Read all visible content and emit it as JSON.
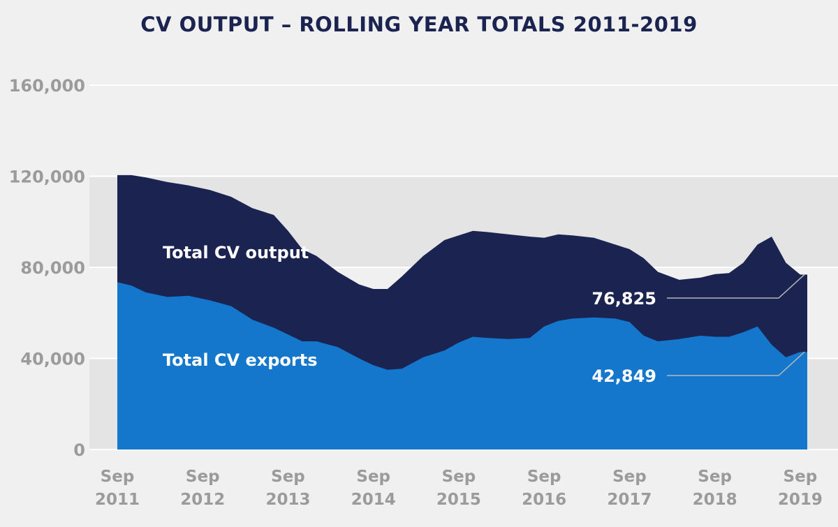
{
  "chart_data": {
    "type": "area",
    "title": "CV OUTPUT – ROLLING YEAR TOTALS 2011-2019",
    "ylim": [
      0,
      160000
    ],
    "yticks": [
      {
        "value": 0,
        "label": "0"
      },
      {
        "value": 40000,
        "label": "40,000"
      },
      {
        "value": 80000,
        "label": "80,000"
      },
      {
        "value": 120000,
        "label": "120,000"
      },
      {
        "value": 160000,
        "label": "160,000"
      }
    ],
    "xlim": [
      2011.667,
      2019.75
    ],
    "xticks": [
      {
        "value": 2011.667,
        "line1": "Sep",
        "line2": "2011"
      },
      {
        "value": 2012.667,
        "line1": "Sep",
        "line2": "2012"
      },
      {
        "value": 2013.667,
        "line1": "Sep",
        "line2": "2013"
      },
      {
        "value": 2014.667,
        "line1": "Sep",
        "line2": "2014"
      },
      {
        "value": 2015.667,
        "line1": "Sep",
        "line2": "2015"
      },
      {
        "value": 2016.667,
        "line1": "Sep",
        "line2": "2016"
      },
      {
        "value": 2017.667,
        "line1": "Sep",
        "line2": "2017"
      },
      {
        "value": 2018.667,
        "line1": "Sep",
        "line2": "2018"
      },
      {
        "value": 2019.667,
        "line1": "Sep",
        "line2": "2019"
      }
    ],
    "grid": true,
    "x": [
      2011.667,
      2011.833,
      2012.0,
      2012.25,
      2012.5,
      2012.75,
      2013.0,
      2013.25,
      2013.5,
      2013.667,
      2013.833,
      2014.0,
      2014.25,
      2014.5,
      2014.667,
      2014.833,
      2015.0,
      2015.25,
      2015.5,
      2015.667,
      2015.833,
      2016.0,
      2016.25,
      2016.5,
      2016.667,
      2016.833,
      2017.0,
      2017.25,
      2017.5,
      2017.667,
      2017.833,
      2018.0,
      2018.25,
      2018.5,
      2018.667,
      2018.833,
      2019.0,
      2019.167,
      2019.333,
      2019.5,
      2019.667,
      2019.75
    ],
    "series": [
      {
        "name": "Total CV output",
        "color": "#1b2450",
        "values": [
          120500,
          120500,
          119500,
          117500,
          116000,
          114000,
          111000,
          106000,
          103000,
          96000,
          88000,
          85000,
          78000,
          72500,
          70500,
          70500,
          76000,
          85000,
          92000,
          94000,
          96000,
          95500,
          94500,
          93500,
          93000,
          94500,
          94000,
          93000,
          90000,
          88000,
          84000,
          78000,
          74500,
          75500,
          77000,
          77500,
          82000,
          90000,
          93500,
          82000,
          76825,
          76825
        ]
      },
      {
        "name": "Total CV exports",
        "color": "#1477cc",
        "values": [
          73500,
          72000,
          69000,
          67000,
          67500,
          65500,
          63000,
          57000,
          53500,
          50500,
          47500,
          47500,
          45000,
          40000,
          37000,
          35000,
          35500,
          40500,
          43500,
          47000,
          49500,
          49000,
          48500,
          49000,
          54000,
          56500,
          57500,
          58000,
          57500,
          56000,
          50000,
          47500,
          48500,
          50000,
          49500,
          49500,
          51500,
          54000,
          46000,
          40500,
          42849,
          42849
        ]
      }
    ],
    "annotations": [
      {
        "text": "Total CV output",
        "series": 0
      },
      {
        "text": "Total CV exports",
        "series": 1
      },
      {
        "text": "76,825",
        "value": 76825,
        "series": 0
      },
      {
        "text": "42,849",
        "value": 42849,
        "series": 1
      }
    ]
  }
}
